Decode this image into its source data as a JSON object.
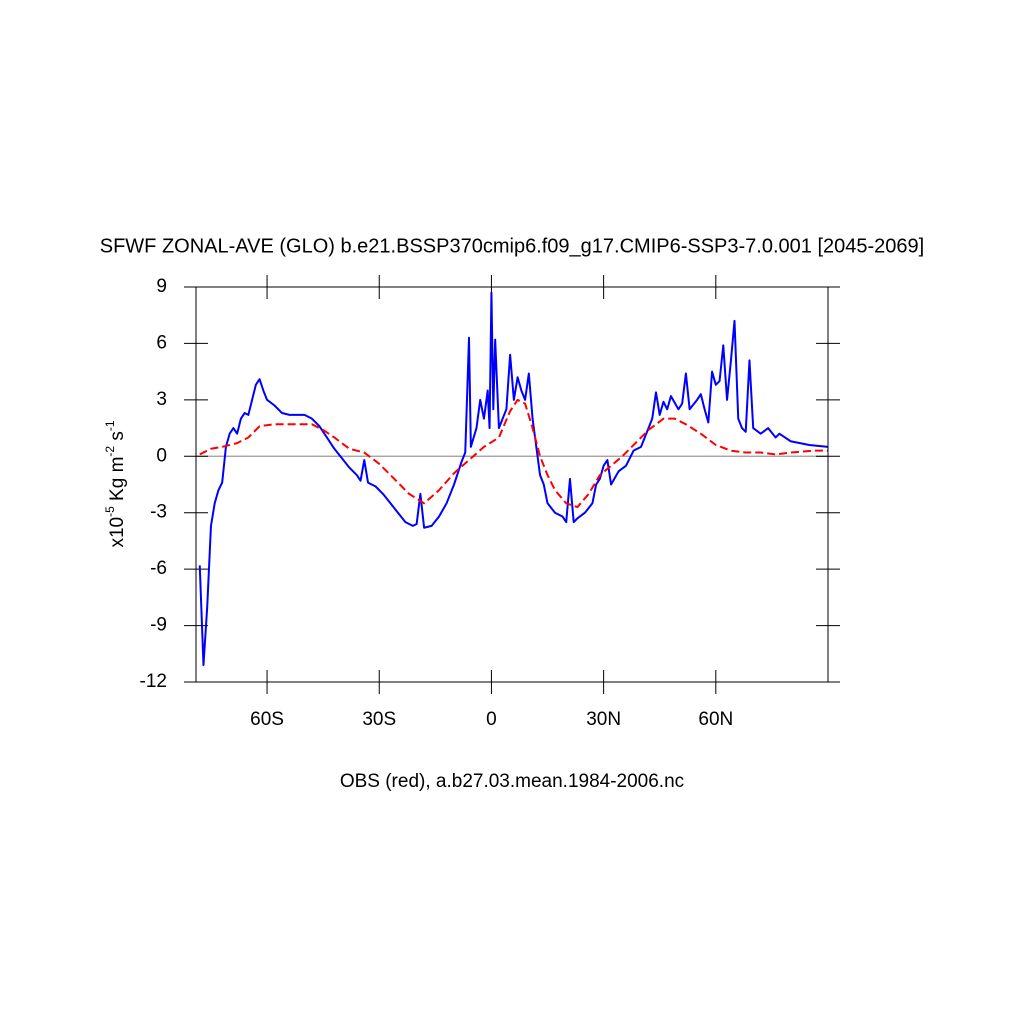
{
  "chart_data": {
    "type": "line",
    "title": "SFWF ZONAL-AVE (GLO) b.e21.BSSP370cmip6.f09_g17.CMIP6-SSP3-7.0.001 [2045-2069]",
    "subtitle": "OBS (red), a.b27.03.mean.1984-2006.nc",
    "y_label": [
      "x10",
      "-5",
      " Kg m",
      "-2",
      " s",
      "-1"
    ],
    "xlim": [
      -79,
      90
    ],
    "ylim": [
      -12,
      9
    ],
    "xticks": [
      {
        "value": -60,
        "label": "60S"
      },
      {
        "value": -30,
        "label": "30S"
      },
      0,
      {
        "value": 30,
        "label": "30N"
      },
      {
        "value": 60,
        "label": "60N"
      }
    ],
    "yticks": [
      -12,
      -9,
      -6,
      -3,
      0,
      3,
      6,
      9
    ],
    "reference_line": 0,
    "series": [
      {
        "color": "#0000ff",
        "dash": false,
        "x": [
          -78,
          -77,
          -76,
          -75,
          -74,
          -73,
          -72,
          -71,
          -70,
          -69,
          -68,
          -67,
          -66,
          -65,
          -64,
          -63,
          -62,
          -61,
          -60,
          -58,
          -56,
          -54,
          -50,
          -48,
          -46,
          -44,
          -42,
          -40,
          -38,
          -36,
          -35,
          -34,
          -33,
          -31,
          -29,
          -27,
          -25,
          -23,
          -21,
          -20,
          -19,
          -18,
          -16,
          -14,
          -12,
          -10,
          -8,
          -7,
          -6,
          -5.5,
          -4,
          -3,
          -2,
          -1,
          -0.5,
          0,
          0.5,
          1,
          2,
          3,
          4,
          5,
          6,
          7,
          8,
          9,
          10,
          11,
          12,
          13,
          14,
          15,
          17,
          19,
          20,
          21,
          22,
          23,
          25,
          27,
          28,
          29,
          30,
          31,
          32,
          34,
          36,
          38,
          40,
          42,
          43,
          44,
          45,
          46,
          47,
          48,
          50,
          51,
          52,
          53,
          55,
          56,
          57,
          58,
          59,
          60,
          61,
          62,
          63,
          64,
          65,
          66,
          67,
          68,
          69,
          70,
          72,
          74,
          76,
          77,
          80,
          85,
          90
        ],
        "values": [
          -5.8,
          -11.1,
          -8,
          -3.7,
          -2.5,
          -1.8,
          -1.4,
          0.5,
          1.2,
          1.5,
          1.2,
          2.0,
          2.3,
          2.2,
          3.0,
          3.8,
          4.1,
          3.5,
          3.0,
          2.7,
          2.3,
          2.2,
          2.2,
          2.0,
          1.6,
          1.0,
          0.4,
          -0.1,
          -0.6,
          -1.0,
          -1.3,
          -0.2,
          -1.4,
          -1.6,
          -2.0,
          -2.5,
          -3.0,
          -3.5,
          -3.7,
          -3.6,
          -2.0,
          -3.8,
          -3.7,
          -3.2,
          -2.5,
          -1.5,
          -0.3,
          0.2,
          6.3,
          0.5,
          1.5,
          3.0,
          2.0,
          3.5,
          1.5,
          8.7,
          2.5,
          6.2,
          1.5,
          2.0,
          2.5,
          5.4,
          3.0,
          4.2,
          3.5,
          3.0,
          4.4,
          2.0,
          0.5,
          -1.0,
          -1.5,
          -2.5,
          -3.0,
          -3.2,
          -3.5,
          -1.2,
          -3.5,
          -3.3,
          -3.0,
          -2.5,
          -1.5,
          -1.2,
          -0.5,
          -0.2,
          -1.5,
          -0.8,
          -0.5,
          0.3,
          0.5,
          1.5,
          2.0,
          3.4,
          2.2,
          2.9,
          2.5,
          3.2,
          2.5,
          2.8,
          4.4,
          2.5,
          3.0,
          3.3,
          2.5,
          1.8,
          4.5,
          3.8,
          4.0,
          5.9,
          3.0,
          5.0,
          7.2,
          2.0,
          1.5,
          1.3,
          5.1,
          1.5,
          1.2,
          1.5,
          1.0,
          1.2,
          0.8,
          0.6,
          0.5
        ]
      },
      {
        "color": "#ff0000",
        "dash": true,
        "x": [
          -78,
          -75,
          -72,
          -68,
          -65,
          -62,
          -58,
          -52,
          -48,
          -45,
          -42,
          -38,
          -34,
          -30,
          -26,
          -22,
          -18,
          -14,
          -10,
          -6,
          -2,
          2,
          5,
          7,
          9,
          11,
          13,
          15,
          17,
          20,
          23,
          26,
          29,
          32,
          35,
          38,
          42,
          46,
          49,
          52,
          56,
          60,
          64,
          68,
          72,
          76,
          80,
          86,
          90
        ],
        "values": [
          0.1,
          0.4,
          0.5,
          0.7,
          1.0,
          1.6,
          1.7,
          1.7,
          1.7,
          1.4,
          1.0,
          0.4,
          0.2,
          -0.4,
          -1.2,
          -2.0,
          -2.5,
          -1.8,
          -0.9,
          -0.2,
          0.5,
          1.0,
          2.4,
          3.0,
          2.8,
          1.5,
          0,
          -1.0,
          -1.8,
          -2.5,
          -2.7,
          -2.0,
          -1.0,
          -0.5,
          0,
          0.6,
          1.4,
          2.0,
          2.0,
          1.7,
          1.2,
          0.6,
          0.3,
          0.2,
          0.2,
          0.1,
          0.2,
          0.3,
          0.3
        ]
      }
    ]
  }
}
